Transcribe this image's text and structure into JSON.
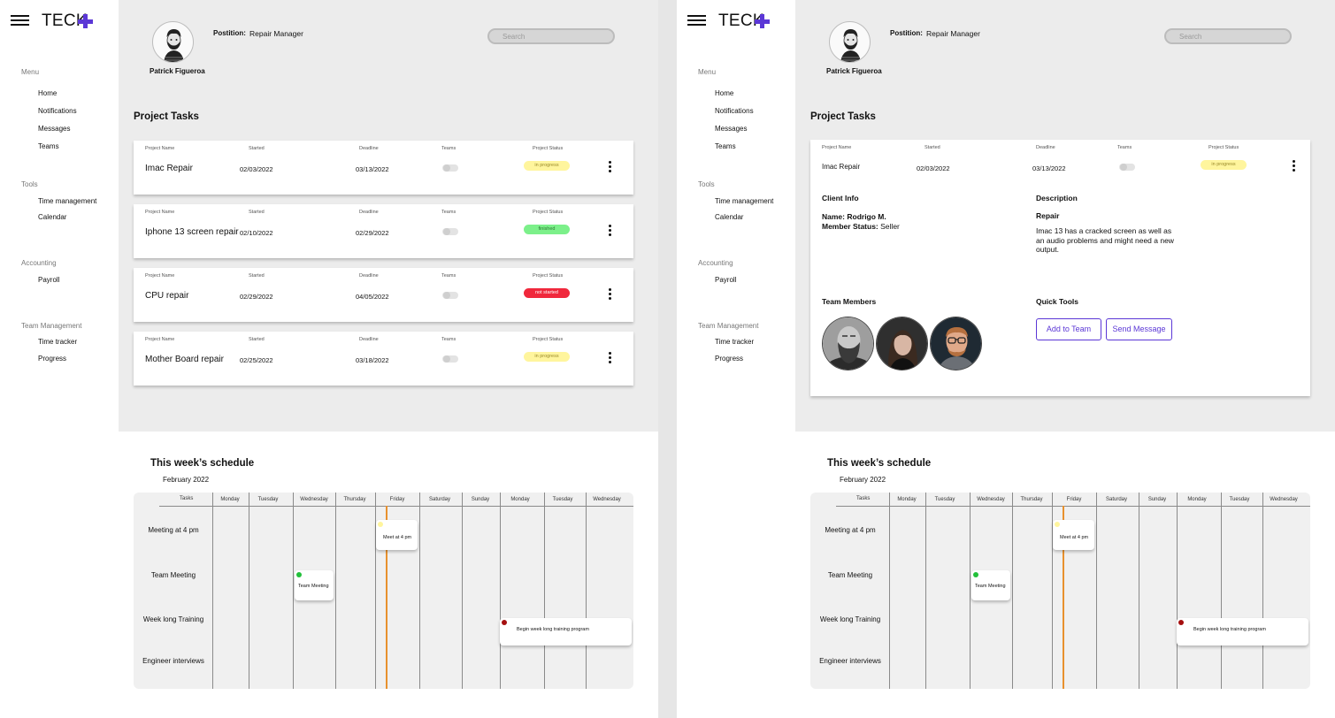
{
  "app": {
    "logo_text": "TECK",
    "brand_color": "#5b37d6"
  },
  "sidebar": {
    "sections": [
      {
        "title": "Menu",
        "items": [
          "Home",
          "Notifications",
          "Messages",
          "Teams"
        ]
      },
      {
        "title": "Tools",
        "items": [
          "Time management",
          "Calendar"
        ]
      },
      {
        "title": "Accounting",
        "items": [
          "Payroll"
        ]
      },
      {
        "title": "Team Management",
        "items": [
          "Time tracker",
          "Progress"
        ]
      }
    ]
  },
  "header": {
    "user_name": "Patrick Figueroa",
    "position_label": "Postition:",
    "position_value": "Repair Manager",
    "search_placeholder": "Search"
  },
  "tasks": {
    "title": "Project Tasks",
    "columns": [
      "Project Name",
      "Started",
      "Deadline",
      "Teams",
      "Project Status"
    ],
    "rows": [
      {
        "name": "Imac Repair",
        "started": "02/03/2022",
        "deadline": "03/13/2022",
        "status": "in progress",
        "status_bg": "#fff59d",
        "status_fg": "#9a8a2a"
      },
      {
        "name": "Iphone 13 screen repair",
        "started": "02/10/2022",
        "deadline": "02/29/2022",
        "status": "finished",
        "status_bg": "#7cf08a",
        "status_fg": "#2d7a34"
      },
      {
        "name": "CPU repair",
        "started": "02/29/2022",
        "deadline": "04/05/2022",
        "status": "not started",
        "status_bg": "#f0283c",
        "status_fg": "#ffffff"
      },
      {
        "name": "Mother Board repair",
        "started": "02/25/2022",
        "deadline": "03/18/2022",
        "status": "in progress",
        "status_bg": "#fff59d",
        "status_fg": "#9a8a2a"
      }
    ]
  },
  "detail": {
    "client_info_title": "Client Info",
    "client_name_label": "Name:",
    "client_name": "Rodrigo M.",
    "member_status_label": "Member Status:",
    "member_status": "Seller",
    "description_title": "Description",
    "description_subtitle": "Repair",
    "description_text": "Imac 13 has a cracked screen as well as an audio problems and might need a new output.",
    "team_members_title": "Team Members",
    "quick_tools_title": "Quick Tools",
    "add_to_team_label": "Add to Team",
    "send_message_label": "Send Message"
  },
  "schedule": {
    "title": "This week’s schedule",
    "month": "February 2022",
    "tasks_header": "Tasks",
    "days": [
      "Monday",
      "Tuesday",
      "Wednesday",
      "Thursday",
      "Friday",
      "Saturday",
      "Sunday",
      "Monday",
      "Tuesday",
      "Wednesday"
    ],
    "tasks": [
      "Meeting at 4 pm",
      "Team Meeting",
      "Week long Training",
      "Engineer interviews"
    ],
    "events": [
      {
        "label": "Meet at 4 pm",
        "dot_color": "#fff59d"
      },
      {
        "label": "Team Meeting",
        "dot_color": "#22c03a"
      },
      {
        "label": "Begin week long training program",
        "dot_color": "#a50f0f"
      }
    ]
  }
}
